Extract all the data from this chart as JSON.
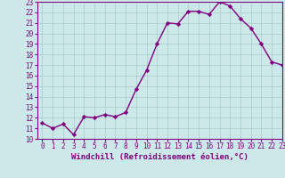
{
  "x": [
    0,
    1,
    2,
    3,
    4,
    5,
    6,
    7,
    8,
    9,
    10,
    11,
    12,
    13,
    14,
    15,
    16,
    17,
    18,
    19,
    20,
    21,
    22,
    23
  ],
  "y": [
    11.5,
    11.0,
    11.4,
    10.4,
    12.1,
    12.0,
    12.3,
    12.1,
    12.5,
    14.7,
    16.5,
    19.0,
    21.0,
    20.9,
    22.1,
    22.1,
    21.8,
    23.0,
    22.6,
    21.4,
    20.5,
    19.0,
    17.3,
    17.0
  ],
  "line_color": "#800080",
  "marker": "D",
  "marker_size": 2.2,
  "bg_color": "#cce8e8",
  "grid_color": "#aacccc",
  "xlabel": "Windchill (Refroidissement éolien,°C)",
  "ylim": [
    10,
    23
  ],
  "xlim": [
    -0.5,
    23
  ],
  "yticks": [
    10,
    11,
    12,
    13,
    14,
    15,
    16,
    17,
    18,
    19,
    20,
    21,
    22,
    23
  ],
  "xticks": [
    0,
    1,
    2,
    3,
    4,
    5,
    6,
    7,
    8,
    9,
    10,
    11,
    12,
    13,
    14,
    15,
    16,
    17,
    18,
    19,
    20,
    21,
    22,
    23
  ],
  "tick_fontsize": 5.5,
  "xlabel_fontsize": 6.5,
  "line_width": 1.0,
  "spine_color": "#800080",
  "tick_color": "#800080"
}
